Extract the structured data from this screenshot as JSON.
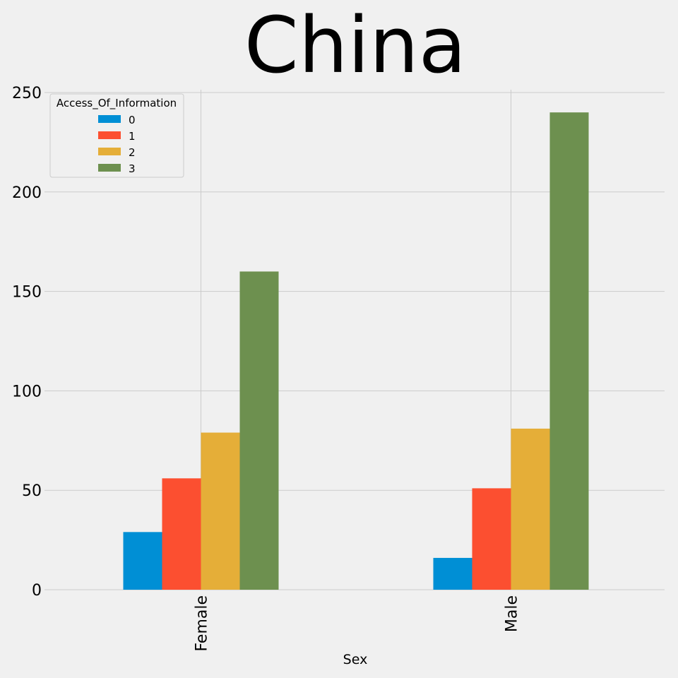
{
  "chart_data": {
    "type": "bar",
    "title": "China",
    "xlabel": "Sex",
    "ylabel": "",
    "categories": [
      "Female",
      "Male"
    ],
    "series": [
      {
        "name": "0",
        "values": [
          29,
          16
        ],
        "color": "#008fd5"
      },
      {
        "name": "1",
        "values": [
          56,
          51
        ],
        "color": "#fc4f30"
      },
      {
        "name": "2",
        "values": [
          79,
          81
        ],
        "color": "#e5ae38"
      },
      {
        "name": "3",
        "values": [
          160,
          240
        ],
        "color": "#6d904f"
      }
    ],
    "legend": {
      "title": "Access_Of_Information",
      "placement": "top-left"
    },
    "ylim": [
      0,
      250
    ],
    "yticks": [
      0,
      50,
      100,
      150,
      200,
      250
    ],
    "grid": true
  }
}
